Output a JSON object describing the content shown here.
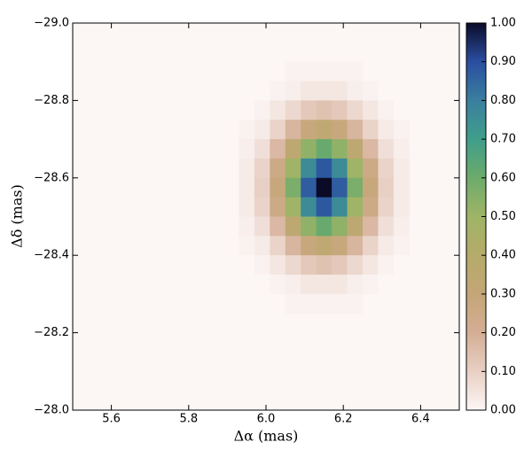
{
  "chart_data": {
    "type": "heatmap",
    "xlabel": "Δα (mas)",
    "ylabel": "Δδ (mas)",
    "xlim": [
      5.5,
      6.5
    ],
    "ylim": [
      -28.0,
      -29.0
    ],
    "zlim": [
      0,
      1
    ],
    "xticks": [
      5.6,
      5.8,
      {
        "value": 6,
        "label": "6.0"
      },
      6.2,
      6.4
    ],
    "yticks": [
      {
        "value": -29,
        "label": "−29.0"
      },
      {
        "value": -28.8,
        "label": "−28.8"
      },
      {
        "value": -28.6,
        "label": "−28.6"
      },
      {
        "value": -28.4,
        "label": "−28.4"
      },
      {
        "value": -28.2,
        "label": "−28.2"
      },
      {
        "value": -28,
        "label": "−28.0"
      }
    ],
    "zticks": [
      {
        "value": 0,
        "label": "0.00"
      },
      {
        "value": 0.1,
        "label": "0.10"
      },
      {
        "value": 0.2,
        "label": "0.20"
      },
      {
        "value": 0.3,
        "label": "0.30"
      },
      {
        "value": 0.4,
        "label": "0.40"
      },
      {
        "value": 0.5,
        "label": "0.50"
      },
      {
        "value": 0.6,
        "label": "0.60"
      },
      {
        "value": 0.7,
        "label": "0.70"
      },
      {
        "value": 0.8,
        "label": "0.80"
      },
      {
        "value": 0.9,
        "label": "0.90"
      },
      {
        "value": 1,
        "label": "1.00"
      }
    ],
    "colors": [
      "#fcf6f5",
      "#e8d0c4",
      "#d4ae95",
      "#c4a677",
      "#b5ab6a",
      "#9fb466",
      "#6cab6b",
      "#3f9e8a",
      "#3a7f9f",
      "#2a4ea0",
      "#0b0b28"
    ],
    "x": [
      5.95,
      5.99,
      6.03,
      6.07,
      6.11,
      6.15,
      6.19,
      6.23,
      6.27,
      6.31,
      6.35
    ],
    "y": [
      -28.875,
      -28.825,
      -28.775,
      -28.725,
      -28.675,
      -28.625,
      -28.575,
      -28.525,
      -28.475,
      -28.425,
      -28.375,
      -28.325,
      -28.275
    ],
    "z": [
      [
        0,
        0,
        0,
        0.01,
        0.01,
        0.01,
        0.01,
        0.01,
        0,
        0,
        0
      ],
      [
        0,
        0,
        0.01,
        0.02,
        0.04,
        0.04,
        0.04,
        0.02,
        0.01,
        0,
        0
      ],
      [
        0,
        0.01,
        0.04,
        0.08,
        0.12,
        0.14,
        0.12,
        0.08,
        0.04,
        0.01,
        0
      ],
      [
        0.01,
        0.03,
        0.09,
        0.18,
        0.28,
        0.33,
        0.28,
        0.18,
        0.09,
        0.03,
        0.01
      ],
      [
        0.02,
        0.06,
        0.17,
        0.34,
        0.53,
        0.61,
        0.53,
        0.34,
        0.17,
        0.06,
        0.02
      ],
      [
        0.03,
        0.09,
        0.25,
        0.5,
        0.76,
        0.88,
        0.76,
        0.5,
        0.25,
        0.09,
        0.03
      ],
      [
        0.03,
        0.1,
        0.28,
        0.57,
        0.87,
        1,
        0.87,
        0.57,
        0.28,
        0.1,
        0.03
      ],
      [
        0.03,
        0.09,
        0.25,
        0.5,
        0.76,
        0.88,
        0.76,
        0.5,
        0.25,
        0.09,
        0.03
      ],
      [
        0.02,
        0.06,
        0.17,
        0.34,
        0.53,
        0.61,
        0.53,
        0.34,
        0.17,
        0.06,
        0.02
      ],
      [
        0.01,
        0.03,
        0.09,
        0.18,
        0.28,
        0.33,
        0.28,
        0.18,
        0.09,
        0.03,
        0.01
      ],
      [
        0,
        0.01,
        0.04,
        0.08,
        0.12,
        0.14,
        0.12,
        0.08,
        0.04,
        0.01,
        0
      ],
      [
        0,
        0,
        0.01,
        0.02,
        0.04,
        0.04,
        0.04,
        0.02,
        0.01,
        0,
        0
      ],
      [
        0,
        0,
        0,
        0.01,
        0.01,
        0.01,
        0.01,
        0.01,
        0,
        0,
        0
      ]
    ]
  }
}
